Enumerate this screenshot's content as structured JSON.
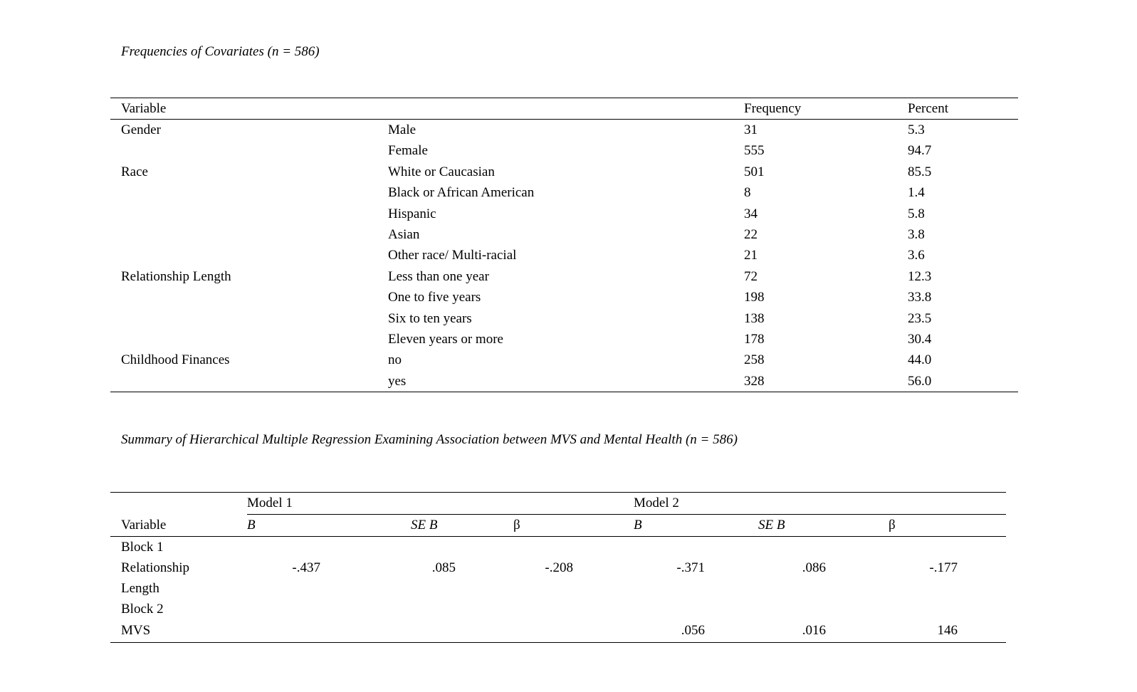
{
  "page": {
    "background": "#ffffff",
    "text_color": "#000000"
  },
  "table1": {
    "title": "Frequencies of Covariates (n = 586)",
    "headers": {
      "variable": "Variable",
      "frequency": "Frequency",
      "percent": "Percent"
    },
    "rows": [
      {
        "variable": "Gender",
        "category": "Male",
        "frequency": "31",
        "percent": "5.3"
      },
      {
        "variable": "",
        "category": "Female",
        "frequency": "555",
        "percent": "94.7"
      },
      {
        "variable": "Race",
        "category": "White or Caucasian",
        "frequency": "501",
        "percent": "85.5"
      },
      {
        "variable": "",
        "category": "Black or African American",
        "frequency": "8",
        "percent": "1.4"
      },
      {
        "variable": "",
        "category": "Hispanic",
        "frequency": "34",
        "percent": "5.8"
      },
      {
        "variable": "",
        "category": "Asian",
        "frequency": "22",
        "percent": "3.8"
      },
      {
        "variable": "",
        "category": "Other race/ Multi-racial",
        "frequency": "21",
        "percent": "3.6"
      },
      {
        "variable": "Relationship Length",
        "category": "Less than one year",
        "frequency": "72",
        "percent": "12.3"
      },
      {
        "variable": "",
        "category": "One to five years",
        "frequency": "198",
        "percent": "33.8"
      },
      {
        "variable": "",
        "category": "Six to ten years",
        "frequency": "138",
        "percent": "23.5"
      },
      {
        "variable": "",
        "category": "Eleven years or more",
        "frequency": "178",
        "percent": "30.4"
      },
      {
        "variable": "Childhood Finances",
        "category": "no",
        "frequency": "258",
        "percent": "44.0"
      },
      {
        "variable": "",
        "category": "yes",
        "frequency": "328",
        "percent": "56.0"
      }
    ]
  },
  "table2": {
    "title": "Summary of Hierarchical Multiple Regression Examining Association between MVS and Mental Health (n = 586)",
    "model1_label": "Model 1",
    "model2_label": "Model 2",
    "headers": {
      "variable": "Variable",
      "b1": "B",
      "seb1": "SE B",
      "beta1": "β",
      "b2": "B",
      "seb2": "SE B",
      "beta2": "β"
    },
    "rows": [
      {
        "variable": "Block 1",
        "b1": "",
        "seb1": "",
        "beta1": "",
        "b2": "",
        "seb2": "",
        "beta2": "",
        "tall": false
      },
      {
        "variable": "Relationship Length",
        "b1": "-.437",
        "seb1": ".085",
        "beta1": "-.208",
        "b2": "-.371",
        "seb2": ".086",
        "beta2": "-.177",
        "tall": true
      },
      {
        "variable": "Block 2",
        "b1": "",
        "seb1": "",
        "beta1": "",
        "b2": "",
        "seb2": "",
        "beta2": "",
        "tall": false
      },
      {
        "variable": "MVS",
        "b1": "",
        "seb1": "",
        "beta1": "",
        "b2": ".056",
        "seb2": ".016",
        "beta2": "146",
        "tall": false
      }
    ]
  }
}
